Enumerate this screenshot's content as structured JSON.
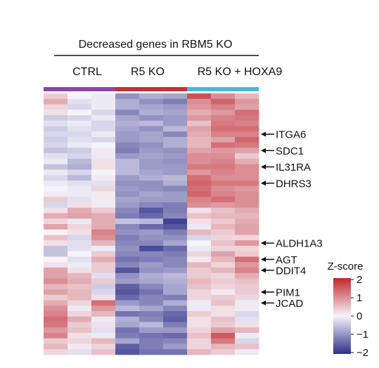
{
  "chart_data": {
    "type": "heatmap",
    "title": "Decreased genes in RBM5 KO",
    "groups": [
      {
        "label": "CTRL",
        "color": "#8e44a8",
        "columns": 3
      },
      {
        "label": "R5 KO",
        "color": "#c0323a",
        "columns": 3
      },
      {
        "label": "R5 KO + HOXA9",
        "color": "#52b3d6",
        "columns": 3
      }
    ],
    "gene_labels": [
      {
        "name": "ITGA6",
        "row": 7
      },
      {
        "name": "SDC1",
        "row": 10
      },
      {
        "name": "IL31RA",
        "row": 13
      },
      {
        "name": "DHRS3",
        "row": 16
      },
      {
        "name": "ALDH1A3",
        "row": 27
      },
      {
        "name": "AGT",
        "row": 30
      },
      {
        "name": "DDIT4",
        "row": 32
      },
      {
        "name": "PIM1",
        "row": 36
      },
      {
        "name": "JCAD",
        "row": 38
      }
    ],
    "colorbar": {
      "title": "Z-score",
      "ticks": [
        "2",
        "1",
        "0",
        "−1",
        "−2"
      ],
      "range": [
        -2,
        2
      ],
      "colors": {
        "low": "#2e2e88",
        "mid": "#f6f4fb",
        "high": "#c0272d"
      }
    },
    "rows": 48,
    "values": [
      [
        0.4,
        0,
        -0.1,
        -1,
        -0.7,
        -0.8,
        1.6,
        1,
        0.6
      ],
      [
        0.7,
        -0.2,
        -0.1,
        -0.7,
        -1,
        -1.2,
        1,
        1.4,
        0.9
      ],
      [
        0.3,
        -0.3,
        0.1,
        -0.7,
        -0.8,
        -0.9,
        0.9,
        1.1,
        0.8
      ],
      [
        0.2,
        0,
        -0.3,
        -1.1,
        -0.7,
        -0.8,
        0.7,
        0.9,
        1.3
      ],
      [
        -0.4,
        -0.3,
        -0.1,
        -0.8,
        -1,
        -0.9,
        0.9,
        1.1,
        1.2
      ],
      [
        -0.2,
        -0.1,
        -0.3,
        -0.7,
        -0.6,
        -0.9,
        0.5,
        1.2,
        1.1
      ],
      [
        -0.4,
        -0.2,
        -0.3,
        -0.8,
        -1,
        -0.6,
        0.8,
        1.3,
        1.3
      ],
      [
        -0.3,
        -0.3,
        -0.1,
        -0.9,
        -0.8,
        -1.1,
        0.7,
        1.1,
        1.1
      ],
      [
        -0.4,
        -0.2,
        -0.3,
        -0.9,
        -0.8,
        -0.7,
        0.6,
        0.8,
        1.4
      ],
      [
        -0.3,
        -0.1,
        0,
        -1.1,
        -1,
        -0.7,
        0.6,
        1.3,
        1.2
      ],
      [
        -0.5,
        -0.4,
        0.1,
        -1.2,
        -0.9,
        -1,
        0.8,
        0.9,
        0.8
      ],
      [
        -0.2,
        -0.3,
        -0.1,
        -0.9,
        -0.8,
        -0.9,
        1,
        1,
        0.4
      ],
      [
        -0.1,
        -0.6,
        0.2,
        -0.6,
        -0.9,
        -1,
        1,
        1.1,
        0.7
      ],
      [
        -0.5,
        -0.7,
        0.2,
        -0.6,
        -0.9,
        -0.9,
        1.2,
        1.2,
        1
      ],
      [
        -0.1,
        -0.3,
        0,
        -0.6,
        -0.8,
        -0.9,
        0.9,
        1.1,
        1
      ],
      [
        -0.3,
        -0.6,
        0.1,
        -0.9,
        -0.7,
        -0.6,
        1.3,
        1,
        1
      ],
      [
        -0.1,
        -0.2,
        -0.2,
        -1,
        -1,
        -0.7,
        1.4,
        1.2,
        1.2
      ],
      [
        0,
        -0.1,
        0.3,
        -0.9,
        -1,
        -1.1,
        1.3,
        1,
        0.9
      ],
      [
        0.1,
        -0.1,
        0.1,
        -1,
        -0.8,
        -0.9,
        1.4,
        1.1,
        1
      ],
      [
        0.4,
        -0.2,
        0.1,
        -0.8,
        -0.9,
        -0.9,
        1.1,
        1.3,
        1
      ],
      [
        -0.3,
        0.2,
        -0.1,
        -0.9,
        -1.1,
        -1.2,
        1,
        0.9,
        1
      ],
      [
        0.2,
        0.7,
        0.4,
        -1.1,
        -1.6,
        -1.2,
        0.2,
        0.5,
        0.7
      ],
      [
        0.7,
        0.8,
        0.7,
        -1.2,
        -1.4,
        -1.1,
        0.5,
        0.6,
        0.6
      ],
      [
        0.3,
        -0.1,
        0.7,
        -0.5,
        -0.6,
        -1.8,
        0.2,
        0.4,
        0.7
      ],
      [
        0.8,
        0.3,
        0.7,
        -1.1,
        -1.4,
        -1.6,
        -0.1,
        0.6,
        0.8
      ],
      [
        0,
        0.2,
        1.1,
        -1,
        -0.9,
        -1.2,
        0.6,
        0.4,
        0.8
      ],
      [
        0.5,
        -0.3,
        1,
        -1.2,
        -1,
        -1,
        -0.3,
        0.3,
        0.3
      ],
      [
        0.2,
        -0.2,
        0.6,
        -1.1,
        -1.1,
        -0.8,
        0,
        0.5,
        0.9
      ],
      [
        -0.5,
        -0.2,
        -0.1,
        -1,
        -1.7,
        -1.4,
        -0.1,
        0.3,
        0.3
      ],
      [
        -0.5,
        0,
        0.4,
        -1.1,
        -1.1,
        -1.2,
        0.3,
        0.8,
        0.4
      ],
      [
        0,
        -0.2,
        0.7,
        -1.3,
        -1.2,
        -1.1,
        0.1,
        0.6,
        1.3
      ],
      [
        0.2,
        -0.1,
        0.4,
        -1.1,
        -0.9,
        -1.1,
        0.6,
        0.3,
        0.9
      ],
      [
        0.8,
        0.2,
        0.4,
        -1.6,
        -1,
        -0.9,
        0.4,
        0.6,
        1.1
      ],
      [
        0.8,
        0.6,
        -0.2,
        -1,
        -0.7,
        -0.6,
        0.4,
        0.3,
        0.7
      ],
      [
        1,
        0.7,
        0.4,
        -0.9,
        -0.8,
        -0.7,
        0.6,
        0.4,
        0.5
      ],
      [
        0.6,
        0.5,
        -0.4,
        -1.5,
        -1.1,
        -0.8,
        0.5,
        0.3,
        0.4
      ],
      [
        0.8,
        0.6,
        -0.3,
        -1.6,
        -1.3,
        -0.8,
        0.3,
        0.1,
        0.4
      ],
      [
        0.4,
        0.6,
        0.2,
        -1.4,
        -1.1,
        -1.2,
        0.3,
        0.4,
        0.3
      ],
      [
        0.7,
        0.3,
        1.3,
        -0.9,
        -1.1,
        -0.7,
        -0.1,
        0.5,
        -0.1
      ],
      [
        1,
        -0.1,
        0.9,
        -0.6,
        -0.8,
        -1.1,
        -0.1,
        0.2,
        0.1
      ],
      [
        1.1,
        0.3,
        0.6,
        -1.3,
        -1.2,
        -1.4,
        0.4,
        0.2,
        -0.3
      ],
      [
        1.3,
        0.7,
        -0.1,
        -0.7,
        -1.1,
        -1.5,
        0.2,
        0.5,
        -0.2
      ],
      [
        1.2,
        0.4,
        0.2,
        -0.8,
        -0.6,
        -1.2,
        0.2,
        0.4,
        0.2
      ],
      [
        0.9,
        0.5,
        -0.2,
        -1.3,
        -0.9,
        -0.9,
        0.3,
        0.8,
        0.6
      ],
      [
        1.1,
        0.2,
        -0.1,
        -1.2,
        -1.3,
        -1.4,
        0.5,
        1.5,
        -0.1
      ],
      [
        0.4,
        0.3,
        0.6,
        -0.8,
        -1.2,
        -1.1,
        0.3,
        1.2,
        -0.3
      ],
      [
        0.6,
        0.1,
        0.3,
        -1.5,
        -1.2,
        -0.9,
        0.3,
        0.6,
        0.5
      ],
      [
        0.3,
        -0.2,
        0.5,
        -1.6,
        -1.3,
        -1.3,
        0.6,
        0.4,
        -0.1
      ]
    ]
  }
}
